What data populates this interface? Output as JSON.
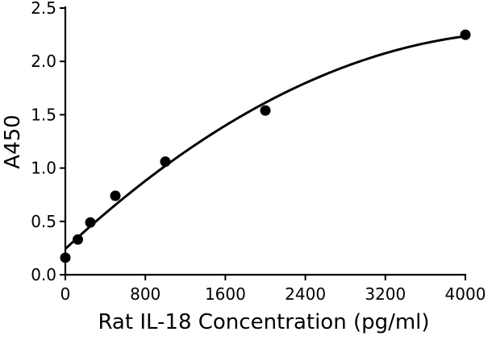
{
  "chart_data": {
    "type": "scatter",
    "xlabel": "Rat IL-18 Concentration (pg/ml)",
    "ylabel": "A450",
    "xlim": [
      0,
      4000
    ],
    "ylim": [
      0,
      2.5
    ],
    "x_ticks": [
      "0",
      "800",
      "1600",
      "2400",
      "3200",
      "4000"
    ],
    "y_ticks": [
      "0.0",
      "0.5",
      "1.0",
      "1.5",
      "2.0",
      "2.5"
    ],
    "grid": false,
    "series": [
      {
        "points": [
          {
            "x": 0,
            "y": 0.16
          },
          {
            "x": 125,
            "y": 0.33
          },
          {
            "x": 250,
            "y": 0.49
          },
          {
            "x": 500,
            "y": 0.74
          },
          {
            "x": 1000,
            "y": 1.06
          },
          {
            "x": 2000,
            "y": 1.54
          },
          {
            "x": 4000,
            "y": 2.25
          }
        ]
      }
    ],
    "fit_curve": "smooth"
  }
}
